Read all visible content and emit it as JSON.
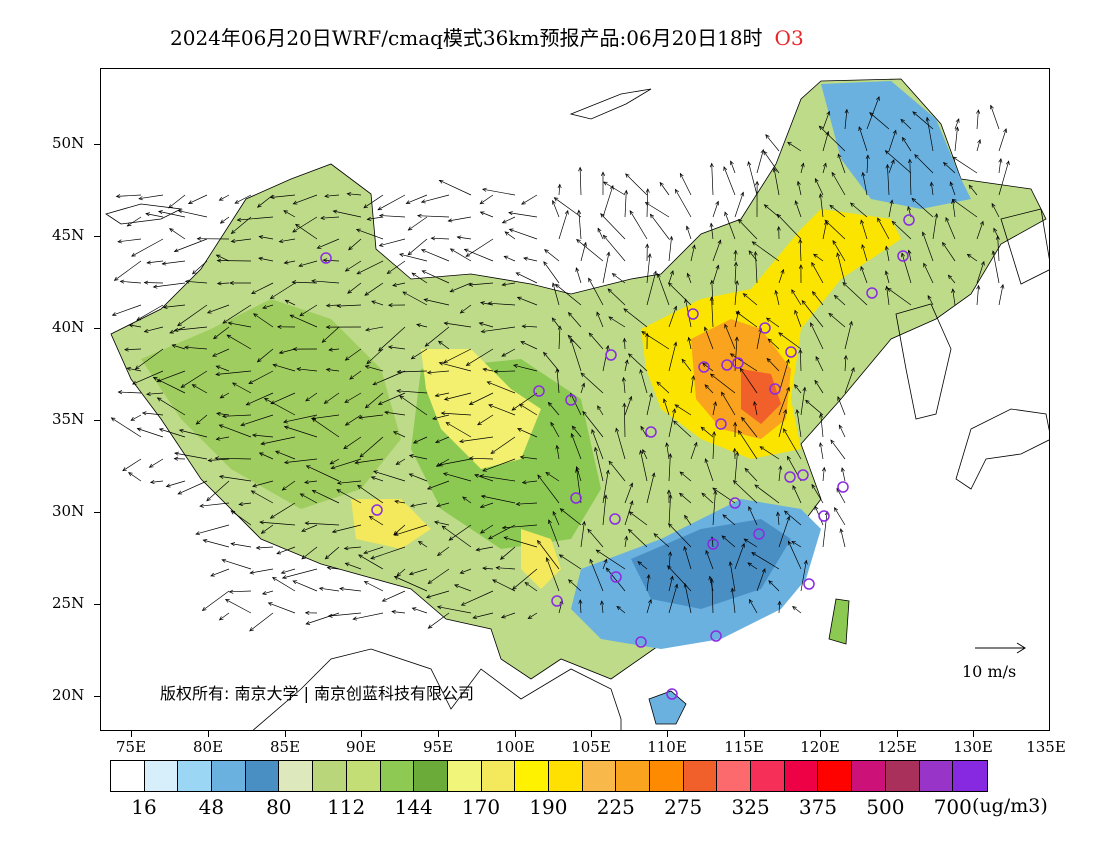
{
  "header": {
    "title": "2024年06月20日WRF/cmaq模式36km预报产品:06月20日18时",
    "variable": "O3"
  },
  "map": {
    "lat_labels": [
      "50N",
      "45N",
      "40N",
      "35N",
      "30N",
      "25N",
      "20N"
    ],
    "lon_labels": [
      "75E",
      "80E",
      "85E",
      "90E",
      "95E",
      "100E",
      "105E",
      "110E",
      "115E",
      "120E",
      "125E",
      "130E",
      "135E"
    ],
    "copyright": "版权所有: 南京大学 | 南京创蓝科技有限公司",
    "reference_vector_label": "10 m/s",
    "station_marker_color": "#8a2be2"
  },
  "colorbar": {
    "colors": [
      "#ffffff",
      "#d6effa",
      "#9bd6f4",
      "#6ab1e0",
      "#4a8fc4",
      "#dde8bd",
      "#b9d67a",
      "#c3de74",
      "#8dc953",
      "#6aab3a",
      "#f1f57a",
      "#f4e85c",
      "#fff200",
      "#ffe000",
      "#f8b84a",
      "#f9a31e",
      "#fd8a01",
      "#f1602a",
      "#fd6a6e",
      "#f62f59",
      "#ee0145",
      "#fe0200",
      "#cc1179",
      "#a9305b",
      "#9934c9",
      "#8729e1"
    ],
    "labels": [
      "16",
      "48",
      "80",
      "112",
      "144",
      "170",
      "190",
      "225",
      "275",
      "325",
      "375",
      "500",
      "700"
    ],
    "unit": "(ug/m3)"
  }
}
